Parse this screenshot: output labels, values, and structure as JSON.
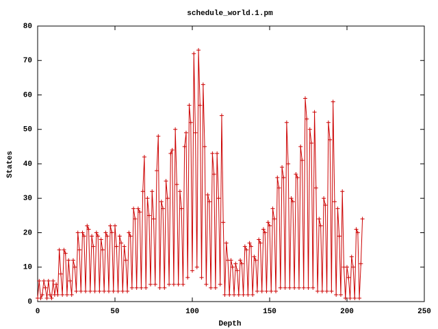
{
  "chart_data": {
    "type": "line",
    "title": "schedule_world.1.pm",
    "x_label": "Depth",
    "y_label": "States",
    "x": [
      0,
      1,
      2,
      3,
      4,
      5,
      6,
      7,
      8,
      9,
      10,
      11,
      12,
      13,
      14,
      15,
      16,
      17,
      18,
      19,
      20,
      21,
      22,
      23,
      24,
      25,
      26,
      27,
      28,
      29,
      30,
      31,
      32,
      33,
      34,
      35,
      36,
      37,
      38,
      39,
      40,
      41,
      42,
      43,
      44,
      45,
      46,
      47,
      48,
      49,
      50,
      51,
      52,
      53,
      54,
      55,
      56,
      57,
      58,
      59,
      60,
      61,
      62,
      63,
      64,
      65,
      66,
      67,
      68,
      69,
      70,
      71,
      72,
      73,
      74,
      75,
      76,
      77,
      78,
      79,
      80,
      81,
      82,
      83,
      84,
      85,
      86,
      87,
      88,
      89,
      90,
      91,
      92,
      93,
      94,
      95,
      96,
      97,
      98,
      99,
      100,
      101,
      102,
      103,
      104,
      105,
      106,
      107,
      108,
      109,
      110,
      111,
      112,
      113,
      114,
      115,
      116,
      117,
      118,
      119,
      120,
      121,
      122,
      123,
      124,
      125,
      126,
      127,
      128,
      129,
      130,
      131,
      132,
      133,
      134,
      135,
      136,
      137,
      138,
      139,
      140,
      141,
      142,
      143,
      144,
      145,
      146,
      147,
      148,
      149,
      150,
      151,
      152,
      153,
      154,
      155,
      156,
      157,
      158,
      159,
      160,
      161,
      162,
      163,
      164,
      165,
      166,
      167,
      168,
      169,
      170,
      171,
      172,
      173,
      174,
      175,
      176,
      177,
      178,
      179,
      180,
      181,
      182,
      183,
      184,
      185,
      186,
      187,
      188,
      189,
      190,
      191,
      192,
      193,
      194,
      195,
      196,
      197,
      198,
      199,
      200,
      201,
      202,
      203,
      204,
      205,
      206,
      207,
      208,
      209,
      210
    ],
    "series": [
      {
        "color": "#cc0000",
        "values": [
          1,
          6,
          1,
          2,
          6,
          4,
          1,
          6,
          2,
          1,
          6,
          2,
          5,
          2,
          15,
          8,
          2,
          15,
          14,
          2,
          12,
          6,
          2,
          12,
          10,
          3,
          20,
          15,
          3,
          20,
          19,
          3,
          22,
          21,
          3,
          19,
          16,
          3,
          20,
          19,
          3,
          18,
          15,
          3,
          20,
          19,
          3,
          22,
          20,
          3,
          22,
          16,
          3,
          19,
          17,
          3,
          16,
          12,
          3,
          20,
          19,
          4,
          27,
          24,
          4,
          27,
          26,
          4,
          32,
          42,
          4,
          30,
          25,
          5,
          32,
          24,
          5,
          38,
          48,
          4,
          29,
          27,
          4,
          35,
          30,
          5,
          43,
          44,
          5,
          50,
          34,
          5,
          32,
          27,
          5,
          45,
          49,
          7,
          57,
          52,
          9,
          72,
          49,
          10,
          73,
          57,
          7,
          63,
          45,
          5,
          31,
          29,
          4,
          43,
          37,
          4,
          43,
          30,
          5,
          54,
          23,
          2,
          17,
          12,
          2,
          12,
          10,
          2,
          11,
          9,
          2,
          12,
          11,
          2,
          16,
          15,
          2,
          17,
          16,
          2,
          13,
          12,
          3,
          18,
          17,
          3,
          21,
          20,
          3,
          23,
          22,
          3,
          27,
          24,
          3,
          36,
          33,
          4,
          39,
          36,
          4,
          52,
          40,
          4,
          30,
          29,
          4,
          37,
          36,
          4,
          45,
          41,
          4,
          59,
          53,
          4,
          50,
          46,
          4,
          55,
          33,
          3,
          24,
          22,
          3,
          30,
          28,
          3,
          52,
          47,
          3,
          58,
          29,
          2,
          27,
          19,
          2,
          32,
          10,
          1,
          10,
          7,
          1,
          13,
          10,
          1,
          21,
          20,
          1,
          11,
          24
        ]
      }
    ],
    "xlim": [
      0,
      250
    ],
    "xticks": [
      0,
      50,
      100,
      150,
      200,
      250
    ],
    "ylim": [
      0,
      80
    ],
    "yticks": [
      0,
      10,
      20,
      30,
      40,
      50,
      60,
      70,
      80
    ]
  }
}
